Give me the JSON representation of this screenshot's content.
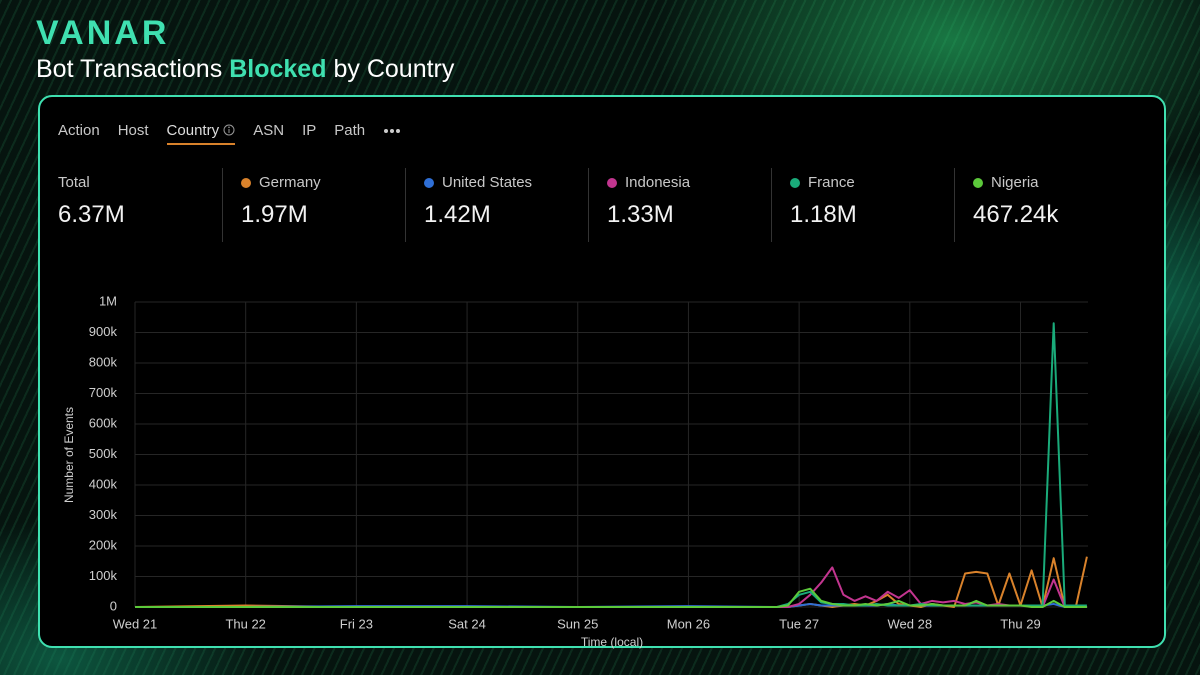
{
  "header": {
    "brand": "VANAR",
    "title": [
      "Bot Transactions",
      "Blocked",
      "by Country"
    ]
  },
  "tabs": [
    "Action",
    "Host",
    "Country",
    "ASN",
    "IP",
    "Path"
  ],
  "stats": [
    {
      "label": "Total",
      "value": "6.37M"
    },
    {
      "label": "Germany",
      "value": "1.97M"
    },
    {
      "label": "United States",
      "value": "1.42M"
    },
    {
      "label": "Indonesia",
      "value": "1.33M"
    },
    {
      "label": "France",
      "value": "1.18M"
    },
    {
      "label": "Nigeria",
      "value": "467.24k"
    }
  ],
  "chart_data": {
    "type": "line",
    "xlabel": "Time (local)",
    "ylabel": "Number of Events",
    "x": [
      0,
      1,
      2,
      3,
      4,
      5,
      5.8,
      5.9,
      6.0,
      6.1,
      6.2,
      6.3,
      6.4,
      6.5,
      6.6,
      6.7,
      6.8,
      6.9,
      7.0,
      7.1,
      7.2,
      7.3,
      7.4,
      7.5,
      7.6,
      7.7,
      7.8,
      7.9,
      8.0,
      8.1,
      8.2,
      8.3,
      8.4,
      8.5,
      8.6
    ],
    "series": [
      {
        "name": "Germany",
        "color": "#d9822b",
        "values": [
          0,
          5000,
          0,
          0,
          0,
          0,
          0,
          0,
          5000,
          10000,
          5000,
          0,
          5000,
          10000,
          5000,
          20000,
          40000,
          10000,
          5000,
          0,
          10000,
          5000,
          0,
          110000,
          115000,
          110000,
          5000,
          110000,
          5000,
          120000,
          0,
          160000,
          0,
          0,
          165000
        ]
      },
      {
        "name": "United States",
        "color": "#2f6fd6",
        "values": [
          0,
          0,
          3000,
          3000,
          0,
          3000,
          0,
          0,
          5000,
          10000,
          5000,
          5000,
          5000,
          5000,
          5000,
          5000,
          10000,
          5000,
          5000,
          5000,
          5000,
          5000,
          5000,
          5000,
          5000,
          5000,
          5000,
          5000,
          5000,
          5000,
          5000,
          10000,
          0,
          0,
          0
        ]
      },
      {
        "name": "Indonesia",
        "color": "#c2358f",
        "values": [
          0,
          0,
          0,
          0,
          0,
          0,
          0,
          0,
          10000,
          40000,
          80000,
          130000,
          40000,
          20000,
          35000,
          20000,
          50000,
          30000,
          55000,
          10000,
          20000,
          15000,
          20000,
          10000,
          15000,
          5000,
          10000,
          5000,
          5000,
          5000,
          0,
          90000,
          0,
          0,
          0
        ]
      },
      {
        "name": "France",
        "color": "#1aab7a",
        "values": [
          0,
          0,
          0,
          0,
          0,
          0,
          0,
          10000,
          40000,
          50000,
          15000,
          10000,
          10000,
          5000,
          5000,
          10000,
          5000,
          5000,
          5000,
          10000,
          5000,
          5000,
          5000,
          5000,
          5000,
          5000,
          5000,
          5000,
          5000,
          5000,
          5000,
          930000,
          5000,
          5000,
          5000
        ]
      },
      {
        "name": "Nigeria",
        "color": "#5cc93b",
        "values": [
          0,
          0,
          0,
          0,
          0,
          0,
          0,
          5000,
          50000,
          60000,
          20000,
          10000,
          5000,
          5000,
          10000,
          5000,
          10000,
          20000,
          5000,
          5000,
          10000,
          5000,
          5000,
          5000,
          20000,
          5000,
          5000,
          5000,
          5000,
          0,
          0,
          20000,
          0,
          0,
          0
        ]
      }
    ],
    "xlim": [
      0,
      8.61
    ],
    "xticks": [
      {
        "value": 0,
        "label": "Wed 21"
      },
      {
        "value": 1,
        "label": "Thu 22"
      },
      {
        "value": 2,
        "label": "Fri 23"
      },
      {
        "value": 3,
        "label": "Sat 24"
      },
      {
        "value": 4,
        "label": "Sun 25"
      },
      {
        "value": 5,
        "label": "Mon 26"
      },
      {
        "value": 6,
        "label": "Tue 27"
      },
      {
        "value": 7,
        "label": "Wed 28"
      },
      {
        "value": 8,
        "label": "Thu 29"
      }
    ],
    "ylim": [
      0,
      1000000
    ],
    "yticks": [
      0,
      {
        "value": 100000,
        "label": "100k"
      },
      {
        "value": 200000,
        "label": "200k"
      },
      {
        "value": 300000,
        "label": "300k"
      },
      {
        "value": 400000,
        "label": "400k"
      },
      {
        "value": 500000,
        "label": "500k"
      },
      {
        "value": 600000,
        "label": "600k"
      },
      {
        "value": 700000,
        "label": "700k"
      },
      {
        "value": 800000,
        "label": "800k"
      },
      {
        "value": 900000,
        "label": "900k"
      },
      {
        "value": 1000000,
        "label": "1M"
      }
    ],
    "grid": true
  }
}
